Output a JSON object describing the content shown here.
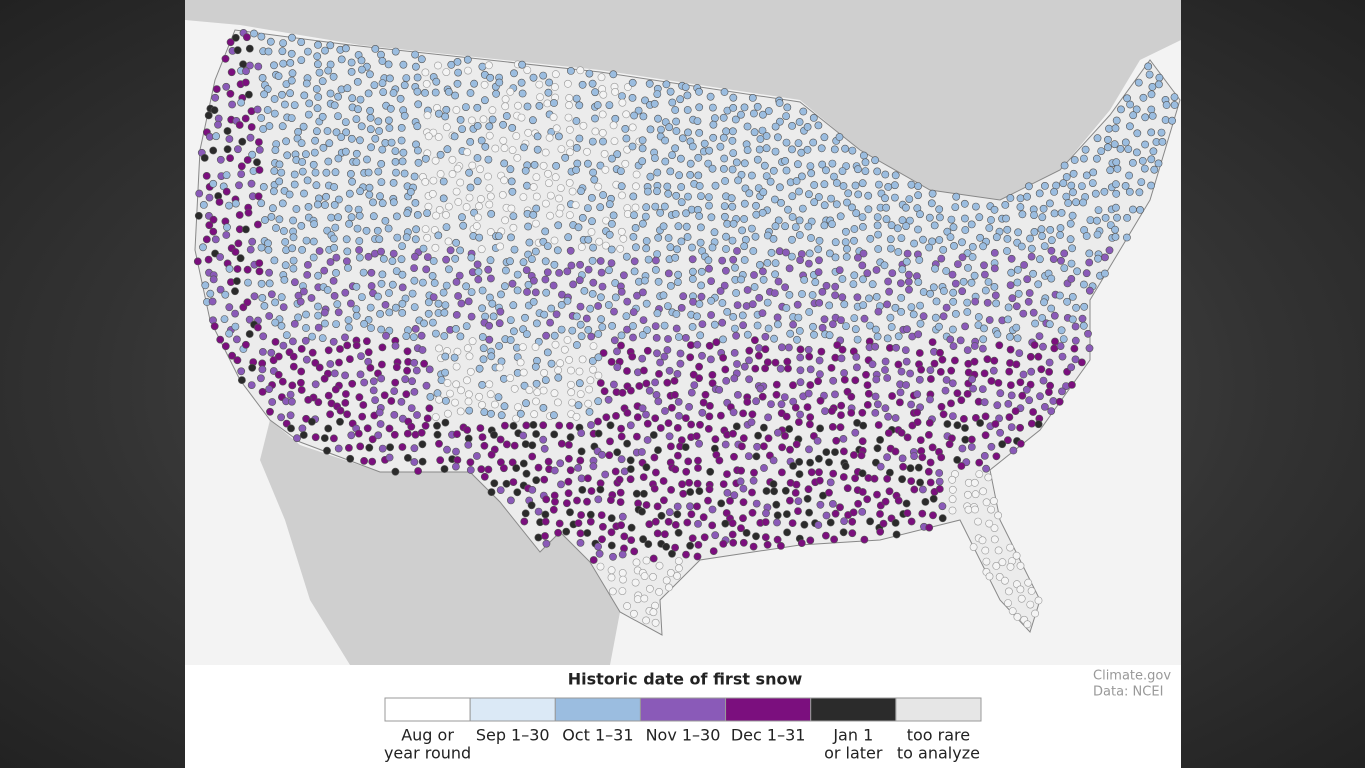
{
  "legend": {
    "title": "Historic date of first snow",
    "items": [
      {
        "lines": [
          "Aug or",
          "year round"
        ],
        "color": "#ffffff"
      },
      {
        "lines": [
          "Sep 1–30"
        ],
        "color": "#dbe9f6"
      },
      {
        "lines": [
          "Oct 1–31"
        ],
        "color": "#9bbde0"
      },
      {
        "lines": [
          "Nov 1–30"
        ],
        "color": "#8a5ab8"
      },
      {
        "lines": [
          "Dec 1–31"
        ],
        "color": "#7b0f7e"
      },
      {
        "lines": [
          "Jan 1",
          "or later"
        ],
        "color": "#2b2b2b"
      },
      {
        "lines": [
          "too rare",
          "to analyze"
        ],
        "color": "#e6e6e6"
      }
    ]
  },
  "credits": {
    "lines": [
      "Climate.gov",
      "Data: NCEI"
    ]
  }
}
